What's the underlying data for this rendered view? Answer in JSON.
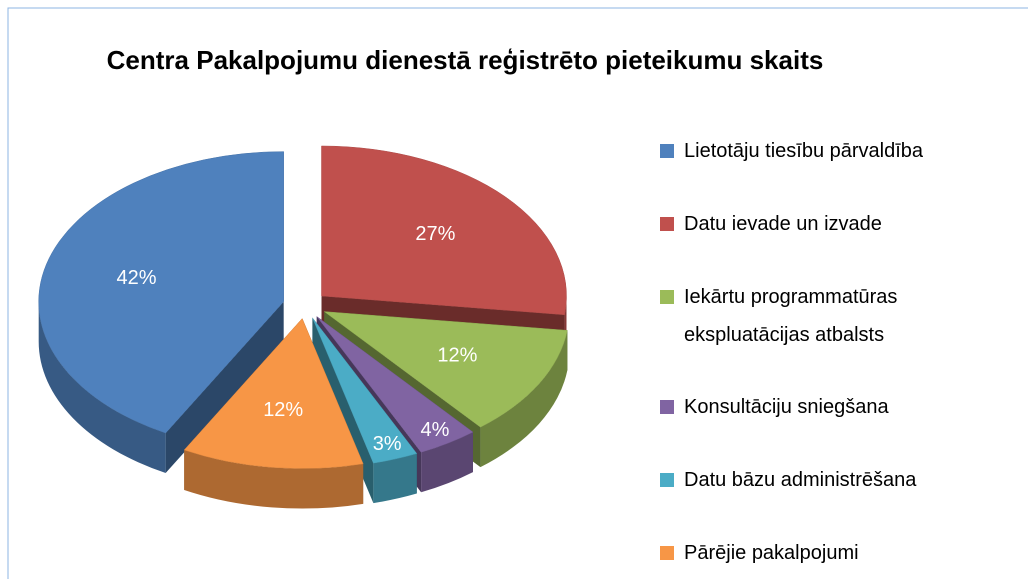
{
  "chart_data": {
    "type": "pie",
    "title": "Centra Pakalpojumu dienestā reģistrēto pieteikumu skaits",
    "categories": [
      "Lietotāju tiesību pārvaldība",
      "Datu ievade un izvade",
      "Iekārtu programmatūras ekspluatācijas atbalsts",
      "Konsultāciju sniegšana",
      "Datu bāzu administrēšana",
      "Pārējie pakalpojumi"
    ],
    "values": [
      42,
      27,
      12,
      4,
      3,
      12
    ],
    "value_labels": [
      "42%",
      "27%",
      "12%",
      "4%",
      "3%",
      "12%"
    ],
    "colors": [
      "#4f81bd",
      "#c0504d",
      "#9bbb59",
      "#8064a2",
      "#4bacc6",
      "#f79646"
    ],
    "legend": "right"
  }
}
